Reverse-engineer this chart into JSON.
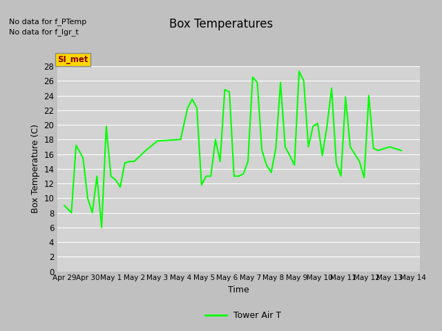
{
  "title": "Box Temperatures",
  "xlabel": "Time",
  "ylabel": "Box Temperature (C)",
  "no_data_text1": "No data for f_PTemp",
  "no_data_text2": "No data for f_lgr_t",
  "legend_label": "Tower Air T",
  "line_color": "#00FF00",
  "fig_bg_color": "#C0C0C0",
  "plot_bg_color": "#D3D3D3",
  "grid_color": "#FFFFFF",
  "ylim": [
    0,
    28
  ],
  "yticks": [
    0,
    2,
    4,
    6,
    8,
    10,
    12,
    14,
    16,
    18,
    20,
    22,
    24,
    26,
    28
  ],
  "SI_met_box_color": "#FFD700",
  "SI_met_text_color": "#8B0000",
  "x_data": [
    0.0,
    0.3,
    0.5,
    0.8,
    1.0,
    1.2,
    1.4,
    1.6,
    1.8,
    2.0,
    2.2,
    2.4,
    2.6,
    2.8,
    3.0,
    3.5,
    4.0,
    5.0,
    5.3,
    5.5,
    5.7,
    5.9,
    6.1,
    6.3,
    6.5,
    6.7,
    6.9,
    7.1,
    7.3,
    7.5,
    7.7,
    7.9,
    8.1,
    8.3,
    8.5,
    8.7,
    8.9,
    9.1,
    9.3,
    9.5,
    9.7,
    9.9,
    10.1,
    10.3,
    10.5,
    10.7,
    10.9,
    11.1,
    11.3,
    11.5,
    11.7,
    11.9,
    12.1,
    12.3,
    12.5,
    12.7,
    12.9,
    13.1,
    13.3,
    13.5,
    14.0,
    14.5
  ],
  "y_data": [
    9.0,
    8.0,
    17.2,
    15.5,
    10.0,
    8.0,
    13.0,
    6.0,
    19.8,
    13.0,
    12.5,
    11.5,
    14.8,
    15.0,
    15.0,
    16.5,
    17.8,
    18.0,
    22.3,
    23.5,
    22.3,
    11.8,
    13.0,
    13.0,
    18.0,
    15.0,
    24.8,
    24.5,
    13.0,
    13.0,
    13.3,
    15.0,
    26.5,
    25.8,
    16.5,
    14.5,
    13.5,
    16.8,
    25.8,
    17.0,
    15.8,
    14.5,
    27.3,
    26.0,
    17.0,
    19.8,
    20.2,
    15.8,
    19.8,
    25.0,
    14.8,
    13.0,
    23.8,
    17.0,
    16.0,
    15.0,
    12.8,
    24.0,
    16.8,
    16.5,
    17.0,
    16.5
  ],
  "x_tick_positions": [
    0,
    1,
    2,
    3,
    4,
    5,
    6,
    7,
    8,
    9,
    10,
    11,
    12,
    13,
    14,
    15
  ],
  "x_tick_labels": [
    "Apr 29",
    "Apr 30",
    "May 1",
    "May 2",
    "May 3",
    "May 4",
    "May 5",
    "May 6",
    "May 7",
    "May 8",
    "May 9",
    "May 10",
    "May 11",
    "May 12",
    "May 13",
    "May 14"
  ]
}
